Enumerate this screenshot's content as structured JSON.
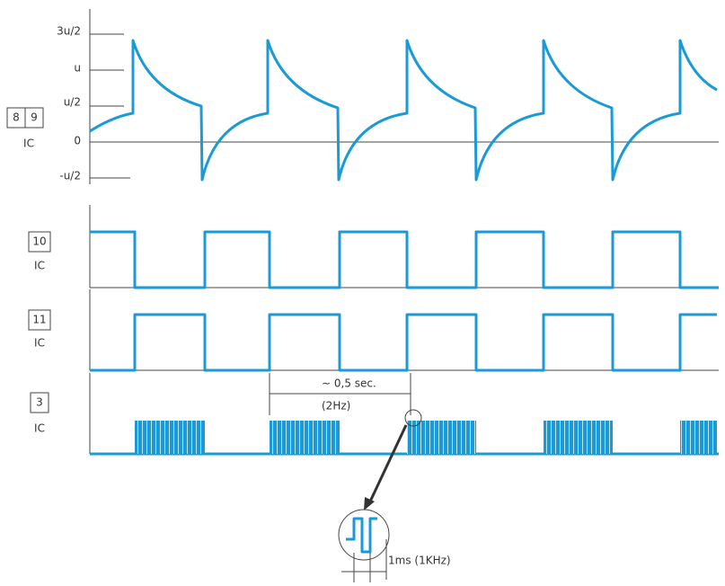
{
  "panels": [
    {
      "pins": [
        "8",
        "9"
      ],
      "chip": "IC",
      "axis_labels": [
        "3u/2",
        "u",
        "u/2",
        "0",
        "-u/2"
      ]
    },
    {
      "pins": [
        "10"
      ],
      "chip": "IC"
    },
    {
      "pins": [
        "11"
      ],
      "chip": "IC"
    },
    {
      "pins": [
        "3"
      ],
      "chip": "IC"
    }
  ],
  "annotations": {
    "period": "∼ 0,5 sec.",
    "frequency": "(2Hz)",
    "pulse": "1ms (1KHz)"
  }
}
